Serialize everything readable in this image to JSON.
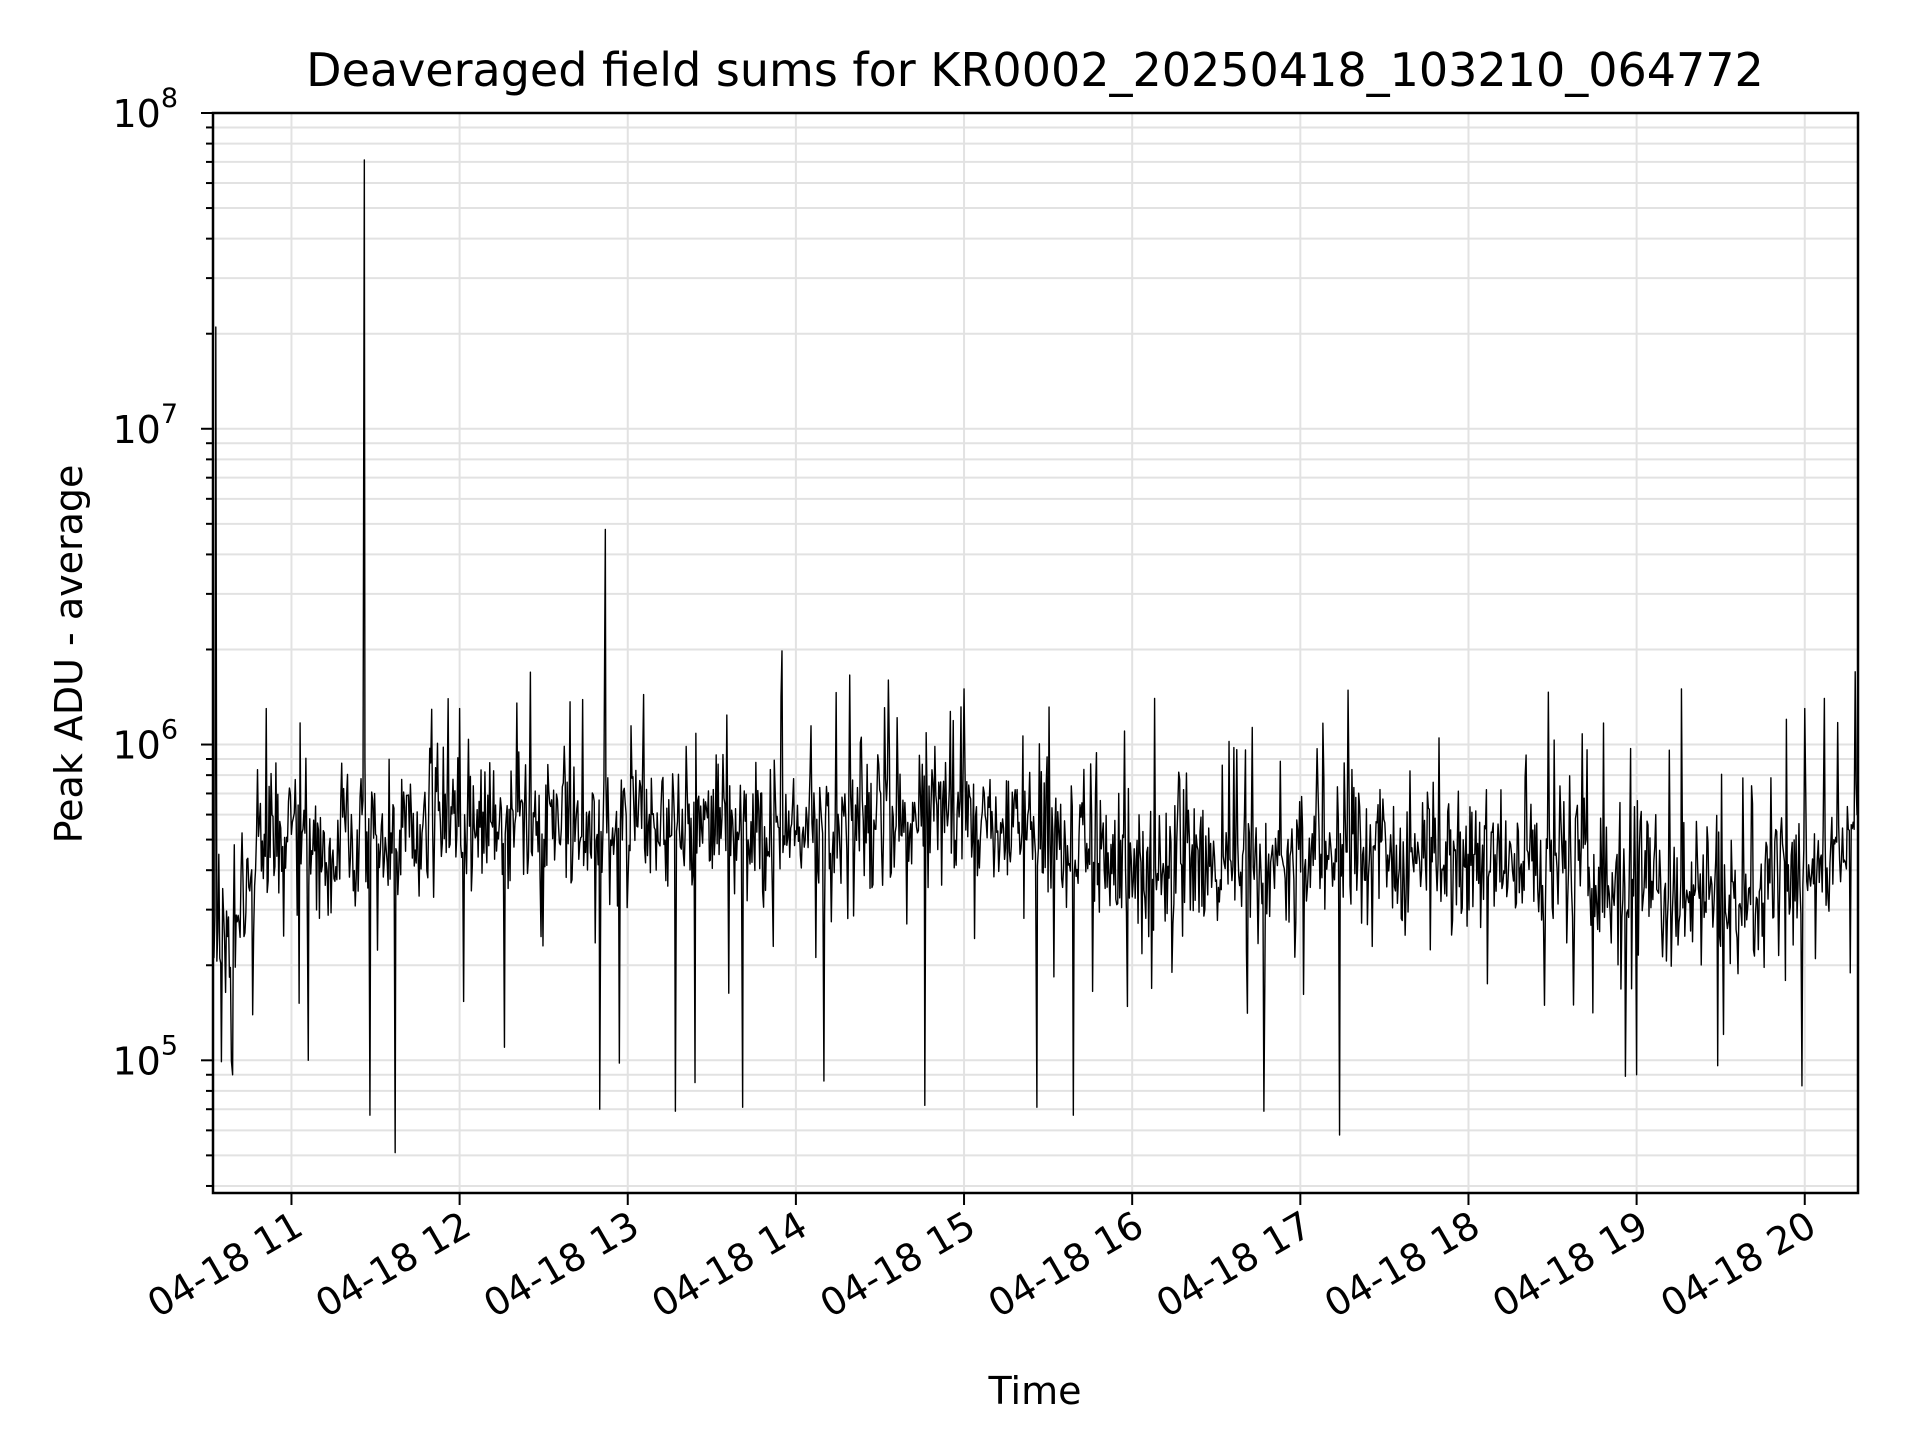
{
  "chart_data": {
    "type": "line",
    "title": "Deaveraged field sums for KR0002_20250418_103210_064772",
    "xlabel": "Time",
    "ylabel": "Peak ADU - average",
    "yscale": "log",
    "ylim": [
      38000,
      100000000
    ],
    "xlim": [
      "04-18 10:32",
      "04-18 20:19"
    ],
    "grid": true,
    "x_ticks": [
      {
        "value": "04-18 11:00",
        "label": "04-18 11"
      },
      {
        "value": "04-18 12:00",
        "label": "04-18 12"
      },
      {
        "value": "04-18 13:00",
        "label": "04-18 13"
      },
      {
        "value": "04-18 14:00",
        "label": "04-18 14"
      },
      {
        "value": "04-18 15:00",
        "label": "04-18 15"
      },
      {
        "value": "04-18 16:00",
        "label": "04-18 16"
      },
      {
        "value": "04-18 17:00",
        "label": "04-18 17"
      },
      {
        "value": "04-18 18:00",
        "label": "04-18 18"
      },
      {
        "value": "04-18 19:00",
        "label": "04-18 19"
      },
      {
        "value": "04-18 20:00",
        "label": "04-18 20"
      }
    ],
    "y_ticks": [
      {
        "value": 100000,
        "base": "10",
        "exp": "5"
      },
      {
        "value": 1000000,
        "base": "10",
        "exp": "6"
      },
      {
        "value": 10000000,
        "base": "10",
        "exp": "7"
      },
      {
        "value": 100000000,
        "base": "10",
        "exp": "8"
      }
    ],
    "series": [
      {
        "color": "#000000",
        "baseline": [
          {
            "x": "04-18 10:32",
            "y": 250000
          },
          {
            "x": "04-18 10:40",
            "y": 260000
          },
          {
            "x": "04-18 10:50",
            "y": 480000
          },
          {
            "x": "04-18 11:10",
            "y": 520000
          },
          {
            "x": "04-18 11:30",
            "y": 500000
          },
          {
            "x": "04-18 12:00",
            "y": 540000
          },
          {
            "x": "04-18 13:00",
            "y": 560000
          },
          {
            "x": "04-18 14:00",
            "y": 540000
          },
          {
            "x": "04-18 14:50",
            "y": 650000
          },
          {
            "x": "04-18 15:30",
            "y": 520000
          },
          {
            "x": "04-18 16:00",
            "y": 400000
          },
          {
            "x": "04-18 16:50",
            "y": 400000
          },
          {
            "x": "04-18 17:10",
            "y": 480000
          },
          {
            "x": "04-18 18:00",
            "y": 440000
          },
          {
            "x": "04-18 19:00",
            "y": 380000
          },
          {
            "x": "04-18 19:20",
            "y": 300000
          },
          {
            "x": "04-18 19:50",
            "y": 360000
          },
          {
            "x": "04-18 20:19",
            "y": 460000
          }
        ],
        "points": [
          {
            "x": "04-18 10:33",
            "y": 21000000
          },
          {
            "x": "04-18 10:35",
            "y": 99000
          },
          {
            "x": "04-18 10:39",
            "y": 90000
          },
          {
            "x": "04-18 10:51",
            "y": 1300000
          },
          {
            "x": "04-18 11:06",
            "y": 100000
          },
          {
            "x": "04-18 11:26",
            "y": 71000000
          },
          {
            "x": "04-18 11:28",
            "y": 67000
          },
          {
            "x": "04-18 11:37",
            "y": 51000
          },
          {
            "x": "04-18 12:00",
            "y": 1300000
          },
          {
            "x": "04-18 12:16",
            "y": 110000
          },
          {
            "x": "04-18 12:50",
            "y": 70000
          },
          {
            "x": "04-18 12:52",
            "y": 4800000
          },
          {
            "x": "04-18 12:57",
            "y": 98000
          },
          {
            "x": "04-18 13:17",
            "y": 69000
          },
          {
            "x": "04-18 13:24",
            "y": 85000
          },
          {
            "x": "04-18 13:41",
            "y": 71000
          },
          {
            "x": "04-18 14:10",
            "y": 86000
          },
          {
            "x": "04-18 14:33",
            "y": 1600000
          },
          {
            "x": "04-18 14:46",
            "y": 72000
          },
          {
            "x": "04-18 15:00",
            "y": 1500000
          },
          {
            "x": "04-18 15:26",
            "y": 71000
          },
          {
            "x": "04-18 15:39",
            "y": 67000
          },
          {
            "x": "04-18 16:08",
            "y": 1400000
          },
          {
            "x": "04-18 16:47",
            "y": 69000
          },
          {
            "x": "04-18 17:14",
            "y": 58000
          },
          {
            "x": "04-18 18:56",
            "y": 89000
          },
          {
            "x": "04-18 19:00",
            "y": 90000
          },
          {
            "x": "04-18 19:16",
            "y": 1500000
          },
          {
            "x": "04-18 19:59",
            "y": 83000
          },
          {
            "x": "04-18 20:00",
            "y": 1300000
          },
          {
            "x": "04-18 20:07",
            "y": 1400000
          },
          {
            "x": "04-18 20:18",
            "y": 1700000
          }
        ]
      }
    ]
  }
}
